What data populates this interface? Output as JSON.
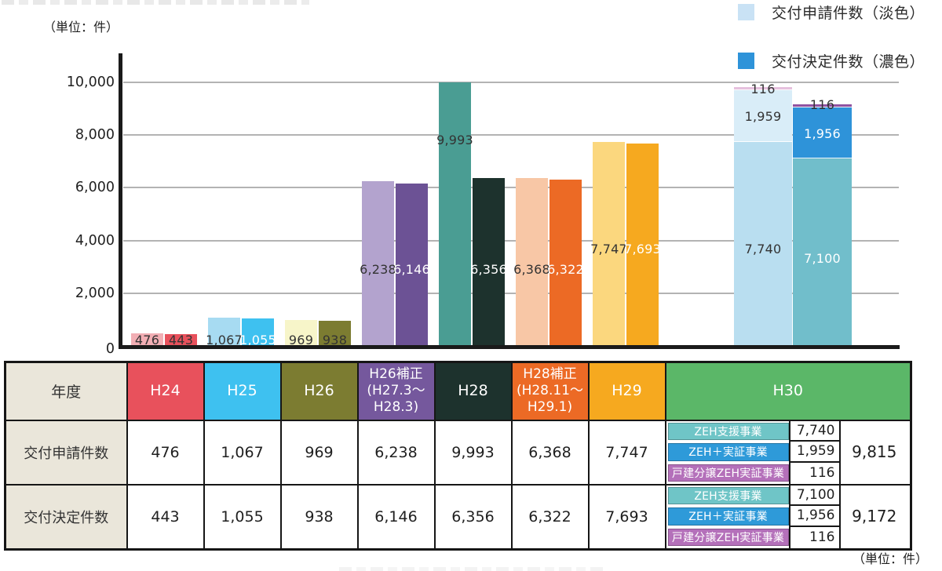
{
  "page": {
    "unit_note_top": "（単位：件）",
    "unit_note_bottom": "（単位：件）"
  },
  "chart_data": {
    "type": "bar",
    "ylabel": "件",
    "ylim": [
      0,
      10000
    ],
    "ytick_labels": [
      "0",
      "2,000",
      "4,000",
      "6,000",
      "8,000",
      "10,000"
    ],
    "grid": true,
    "legend_position": "top-right",
    "legend": [
      {
        "label": "交付申請件数（淡色）",
        "color": "#C9E2F5"
      },
      {
        "label": "交付決定件数（濃色）",
        "color": "#2E93D9"
      }
    ],
    "categories": [
      "H24",
      "H25",
      "H26",
      "H26補正(H27.3～H28.3)",
      "H28",
      "H28補正(H28.11～H29.1)",
      "H29",
      "H30"
    ],
    "series": [
      {
        "name": "交付申請件数",
        "values": [
          476,
          1067,
          969,
          6238,
          9993,
          6368,
          7747,
          9815
        ]
      },
      {
        "name": "交付決定件数",
        "values": [
          443,
          1055,
          938,
          6146,
          6356,
          6322,
          7693,
          9172
        ]
      }
    ],
    "h30_breakdown": {
      "applications": [
        {
          "label": "ZEH支援事業",
          "value": 7740
        },
        {
          "label": "ZEH＋実証事業",
          "value": 1959
        },
        {
          "label": "戸建分譲ZEH実証事業",
          "value": 116
        }
      ],
      "decisions": [
        {
          "label": "ZEH支援事業",
          "value": 7100
        },
        {
          "label": "ZEH＋実証事業",
          "value": 1956
        },
        {
          "label": "戸建分譲ZEH実証事業",
          "value": 116
        }
      ]
    },
    "bars": [
      {
        "x": 167,
        "w": 41,
        "segments": [
          {
            "value": 476,
            "label": "476",
            "color": "#F2AEB4",
            "text": "#333333",
            "label_at": 210
          }
        ]
      },
      {
        "x": 210,
        "w": 41,
        "segments": [
          {
            "value": 443,
            "label": "443",
            "color": "#E8515C",
            "text": "#333333",
            "label_at": 210
          }
        ]
      },
      {
        "x": 265,
        "w": 41,
        "segments": [
          {
            "value": 1067,
            "label": "1,067",
            "color": "#A7DBF2",
            "text": "#333333",
            "label_at": 210
          }
        ]
      },
      {
        "x": 308,
        "w": 41,
        "segments": [
          {
            "value": 1055,
            "label": "1,055",
            "color": "#3EC1F0",
            "text": "#ffffff",
            "label_at": 210
          }
        ]
      },
      {
        "x": 363,
        "w": 41,
        "segments": [
          {
            "value": 969,
            "label": "969",
            "color": "#F7F5C9",
            "text": "#333333",
            "label_at": 210
          }
        ]
      },
      {
        "x": 406,
        "w": 41,
        "segments": [
          {
            "value": 938,
            "label": "938",
            "color": "#7C7C31",
            "text": "#333333",
            "label_at": 210
          }
        ]
      },
      {
        "x": 461,
        "w": 41,
        "segments": [
          {
            "value": 6238,
            "label": "6,238",
            "color": "#B3A3CE",
            "text": "#333333",
            "label_at": 2900
          }
        ]
      },
      {
        "x": 504,
        "w": 41,
        "segments": [
          {
            "value": 6146,
            "label": "6,146",
            "color": "#6C5295",
            "text": "#ffffff",
            "label_at": 2900
          }
        ]
      },
      {
        "x": 559,
        "w": 41,
        "segments": [
          {
            "value": 9993,
            "label": "9,993",
            "color": "#4A9D93",
            "text": "#333333",
            "label_at": 7800
          }
        ]
      },
      {
        "x": 602,
        "w": 41,
        "segments": [
          {
            "value": 6356,
            "label": "6,356",
            "color": "#1D322D",
            "text": "#ffffff",
            "label_at": 2900
          }
        ]
      },
      {
        "x": 657,
        "w": 41,
        "segments": [
          {
            "value": 6368,
            "label": "6,368",
            "color": "#F8C7A6",
            "text": "#333333",
            "label_at": 2900
          }
        ]
      },
      {
        "x": 700,
        "w": 41,
        "segments": [
          {
            "value": 6322,
            "label": "6,322",
            "color": "#EC6A25",
            "text": "#ffffff",
            "label_at": 2900
          }
        ]
      },
      {
        "x": 755,
        "w": 41,
        "segments": [
          {
            "value": 7747,
            "label": "7,747",
            "color": "#FBD77E",
            "text": "#333333",
            "label_at": 3650
          }
        ]
      },
      {
        "x": 798,
        "w": 41,
        "segments": [
          {
            "value": 7693,
            "label": "7,693",
            "color": "#F6A91F",
            "text": "#ffffff",
            "label_at": 3650
          }
        ]
      },
      {
        "x": 935,
        "w": 74,
        "segments": [
          {
            "value": 7740,
            "label": "7,740",
            "color": "#B9DEF0",
            "text": "#333333",
            "label_at": 3650
          },
          {
            "value": 1959,
            "label": "1,959",
            "color": "#D9EDF8",
            "text": "#333333",
            "label_at": 8700
          },
          {
            "value": 116,
            "label": "116",
            "color": "#E6C1DE",
            "text": "#333333",
            "label_at": 9720
          }
        ]
      },
      {
        "x": 1010,
        "w": 75,
        "segments": [
          {
            "value": 7100,
            "label": "7,100",
            "color": "#71BECB",
            "text": "#ffffff",
            "label_at": 3300
          },
          {
            "value": 1956,
            "label": "1,956",
            "color": "#2E93D9",
            "text": "#ffffff",
            "label_at": 8050
          },
          {
            "value": 116,
            "label": "116",
            "color": "#9053A1",
            "text": "#333333",
            "label_at": 9150
          }
        ]
      }
    ]
  },
  "table": {
    "corner_label": "年度",
    "columns": [
      {
        "label": "H24",
        "color": "#E8515C"
      },
      {
        "label": "H25",
        "color": "#3EC1F0"
      },
      {
        "label": "H26",
        "color": "#7C7C31"
      },
      {
        "label": "H26補正\n(H27.3～\nH28.3)",
        "color": "#75589D"
      },
      {
        "label": "H28",
        "color": "#1D322D"
      },
      {
        "label": "H28補正\n(H28.11～\nH29.1)",
        "color": "#EC6A25"
      },
      {
        "label": "H29",
        "color": "#F6A91F"
      },
      {
        "label": "H30",
        "color": "#5BB768"
      }
    ],
    "rows": [
      {
        "label": "交付申請件数",
        "values": [
          "476",
          "1,067",
          "969",
          "6,238",
          "9,993",
          "6,368",
          "7,747"
        ],
        "h30": {
          "items": [
            {
              "label": "ZEH支援事業",
              "color": "#6FC5C7",
              "value": "7,740"
            },
            {
              "label": "ZEH＋実証事業",
              "color": "#2E9AD9",
              "value": "1,959"
            },
            {
              "label": "戸建分譲ZEH実証事業",
              "color": "#B470BA",
              "value": "116"
            }
          ],
          "total": "9,815"
        }
      },
      {
        "label": "交付決定件数",
        "values": [
          "443",
          "1,055",
          "938",
          "6,146",
          "6,356",
          "6,322",
          "7,693"
        ],
        "h30": {
          "items": [
            {
              "label": "ZEH支援事業",
              "color": "#6FC5C7",
              "value": "7,100"
            },
            {
              "label": "ZEH＋実証事業",
              "color": "#2E9AD9",
              "value": "1,956"
            },
            {
              "label": "戸建分譲ZEH実証事業",
              "color": "#B470BA",
              "value": "116"
            }
          ],
          "total": "9,172"
        }
      }
    ]
  }
}
